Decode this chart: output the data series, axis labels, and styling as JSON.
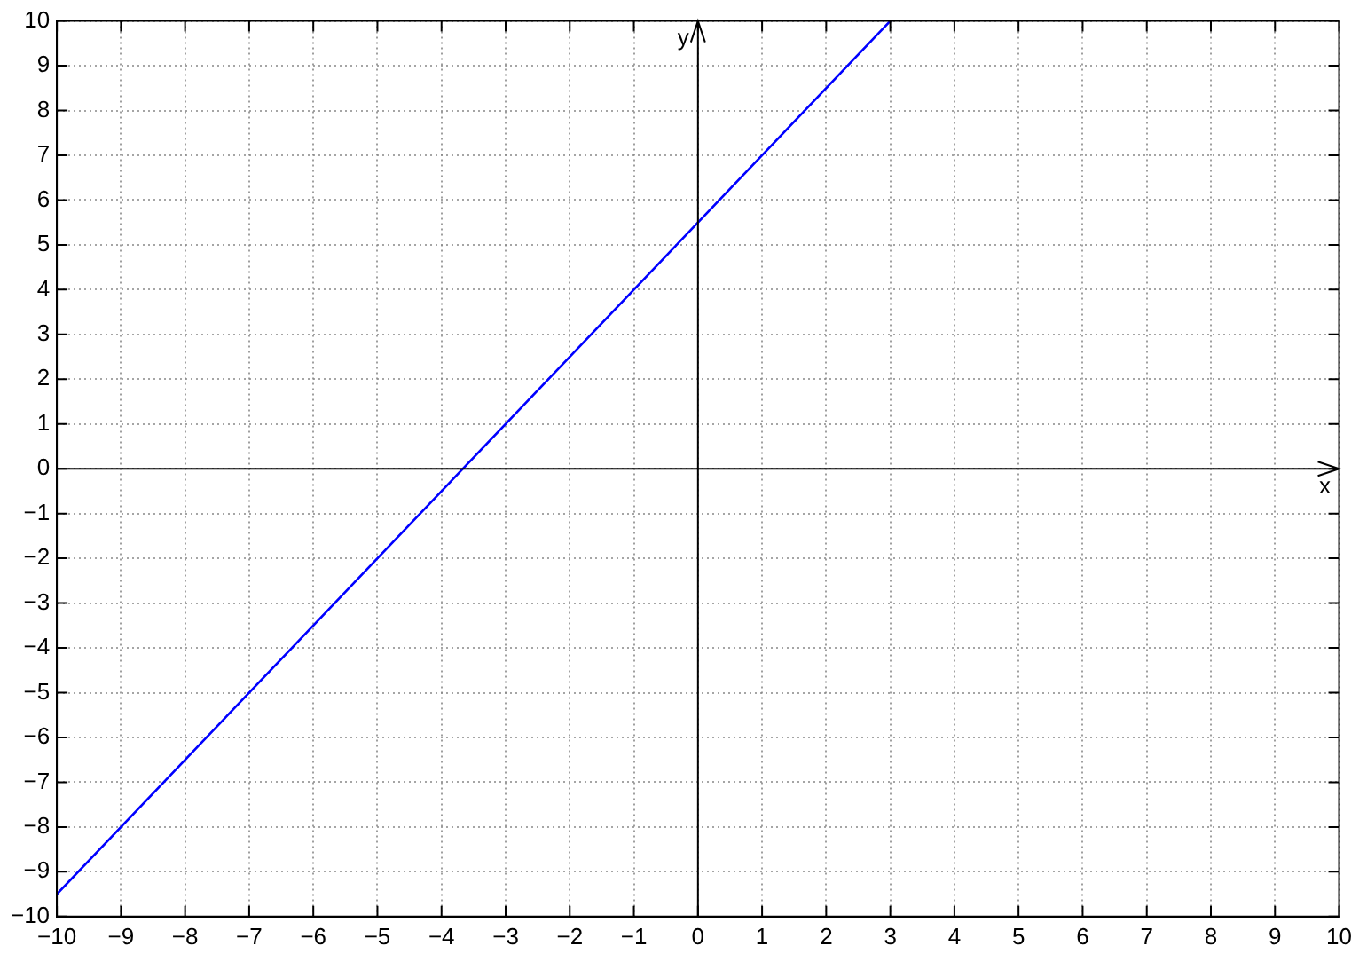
{
  "chart_data": {
    "type": "line",
    "xlabel": "x",
    "ylabel": "y",
    "x": [
      -10,
      3
    ],
    "series": [
      {
        "color": "#0000ff",
        "values": [
          -9.5,
          10
        ]
      }
    ],
    "xlim": [
      -10,
      10
    ],
    "xticks": [
      {
        "value": -10,
        "label": "−10"
      },
      {
        "value": -9,
        "label": "−9"
      },
      {
        "value": -8,
        "label": "−8"
      },
      {
        "value": -7,
        "label": "−7"
      },
      {
        "value": -6,
        "label": "−6"
      },
      {
        "value": -5,
        "label": "−5"
      },
      {
        "value": -4,
        "label": "−4"
      },
      {
        "value": -3,
        "label": "−3"
      },
      {
        "value": -2,
        "label": "−2"
      },
      {
        "value": -1,
        "label": "−1"
      },
      0,
      1,
      2,
      3,
      4,
      5,
      6,
      7,
      8,
      9,
      10
    ],
    "ylim": [
      -10,
      10
    ],
    "yticks": [
      {
        "value": -10,
        "label": "−10"
      },
      {
        "value": -9,
        "label": "−9"
      },
      {
        "value": -8,
        "label": "−8"
      },
      {
        "value": -7,
        "label": "−7"
      },
      {
        "value": -6,
        "label": "−6"
      },
      {
        "value": -5,
        "label": "−5"
      },
      {
        "value": -4,
        "label": "−4"
      },
      {
        "value": -3,
        "label": "−3"
      },
      {
        "value": -2,
        "label": "−2"
      },
      {
        "value": -1,
        "label": "−1"
      },
      0,
      1,
      2,
      3,
      4,
      5,
      6,
      7,
      8,
      9,
      10
    ],
    "grid": true,
    "legend": false,
    "marker": "none",
    "line_style": "solid"
  }
}
